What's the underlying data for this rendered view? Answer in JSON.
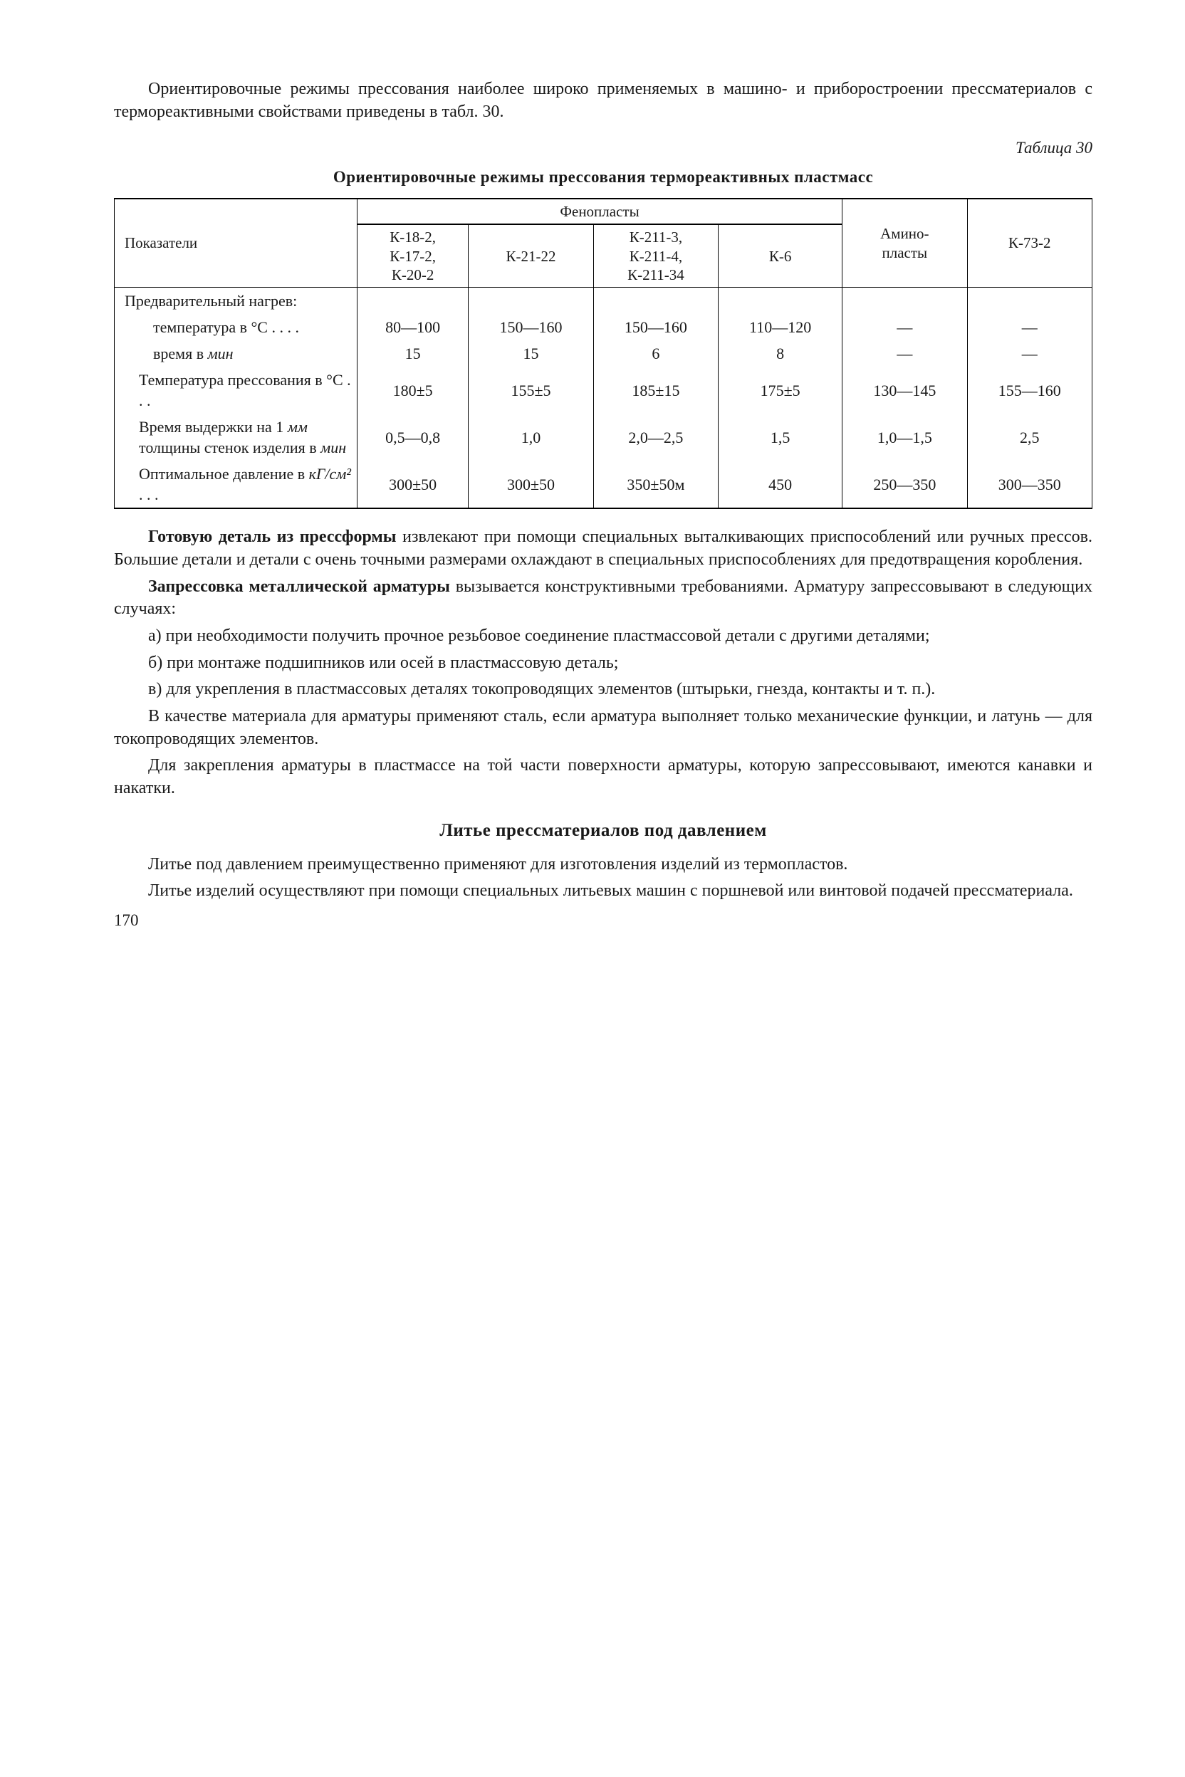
{
  "intro": "Ориентировочные режимы прессования наиболее широко применяемых в машино- и приборостроении прессматериалов с термореактивными свойствами приведены в табл. 30.",
  "table_label": "Таблица 30",
  "table_title": "Ориентировочные режимы прессования термореактивных пластмасс",
  "table": {
    "head_param": "Показатели",
    "head_group": "Фенопласты",
    "head_cols": [
      "К-18-2,\nК-17-2,\nК-20-2",
      "К-21-22",
      "К-211-3,\nК-211-4,\nК-211-34",
      "К-6",
      "Амино-\nпласты",
      "К-73-2"
    ],
    "rows": [
      {
        "label": "Предварительный нагрев:",
        "vals": [
          "",
          "",
          "",
          "",
          "",
          ""
        ]
      },
      {
        "label": "температура в °C . . . .",
        "vals": [
          "80—100",
          "150—160",
          "150—160",
          "110—120",
          "—",
          "—"
        ],
        "sub": 2
      },
      {
        "label": "время в мин",
        "vals": [
          "15",
          "15",
          "6",
          "8",
          "—",
          "—"
        ],
        "sub": 2,
        "italic_tail": "мин"
      },
      {
        "label": "Температура прессования в °C . . .",
        "vals": [
          "180±5",
          "155±5",
          "185±15",
          "175±5",
          "130—145",
          "155—160"
        ],
        "sub": 1
      },
      {
        "label": "Время выдержки на 1 мм толщины стенок изделия в мин",
        "vals": [
          "0,5—0,8",
          "1,0",
          "2,0—2,5",
          "1,5",
          "1,0—1,5",
          "2,5"
        ],
        "sub": 1,
        "italic_parts": [
          "мм",
          "мин"
        ]
      },
      {
        "label": "Оптимальное давление в кГ/см² . . .",
        "vals": [
          "300±50",
          "300±50",
          "350±50м",
          "450",
          "250—350",
          "300—350"
        ],
        "sub": 1,
        "italic_tail": "кГ/см²"
      }
    ]
  },
  "body": {
    "p1_a": "Готовую деталь из прессформы",
    "p1_b": " извлекают при помощи специальных выталкивающих приспособлений или ручных прессов. Большие детали и детали с очень точными размерами охлаждают в специальных приспособлениях для предотвращения коробления.",
    "p2_a": "Запрессовка металлической арматуры",
    "p2_b": " вызывается конструктивными требованиями. Арматуру запрессовывают в следующих случаях:",
    "pa": "а) при необходимости получить прочное резьбовое соединение пластмассовой детали с другими деталями;",
    "pb": "б) при монтаже подшипников или осей в пластмассовую деталь;",
    "pc": "в) для укрепления в пластмассовых деталях токопроводящих элементов (штырьки, гнезда, контакты и т. п.).",
    "p3": "В качестве материала для арматуры применяют сталь, если арматура выполняет только механические функции, и латунь — для токопроводящих элементов.",
    "p4": "Для закрепления арматуры в пластмассе на той части поверхности арматуры, которую запрессовывают, имеются канавки и накатки."
  },
  "section_title": "Литье прессматериалов под давлением",
  "tail": {
    "p1": "Литье под давлением преимущественно применяют для изготовления изделий из термопластов.",
    "p2": "Литье изделий осуществляют при помощи специальных литьевых машин с поршневой или винтовой подачей прессматериала."
  },
  "page": "170"
}
